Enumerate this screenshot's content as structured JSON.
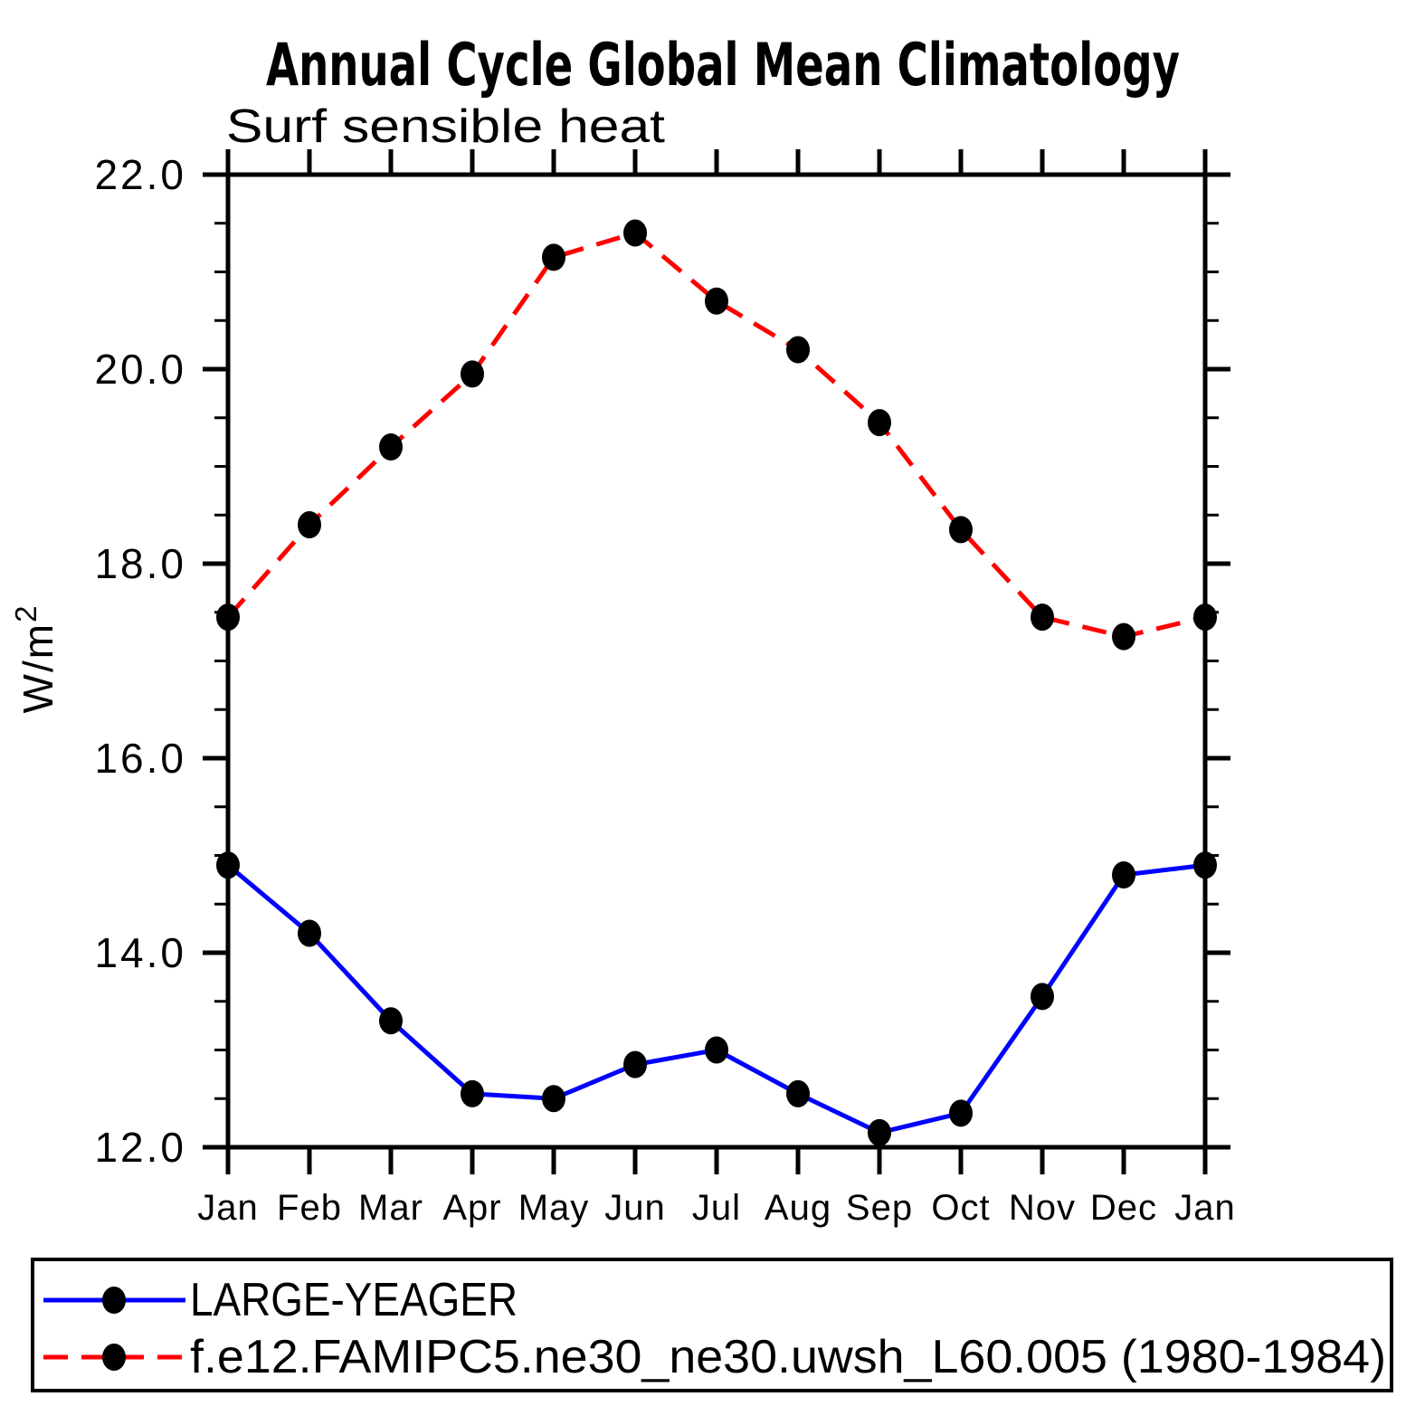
{
  "title": "Annual Cycle Global Mean Climatology",
  "subtitle": "Surf sensible heat",
  "y_axis": {
    "label_base": "W/m",
    "label_exponent": "2"
  },
  "chart_data": {
    "type": "line",
    "title": "Annual Cycle Global Mean Climatology",
    "subtitle": "Surf sensible heat",
    "ylabel": "W/m^2",
    "xlabel": "",
    "categories": [
      "Jan",
      "Feb",
      "Mar",
      "Apr",
      "May",
      "Jun",
      "Jul",
      "Aug",
      "Sep",
      "Oct",
      "Nov",
      "Dec",
      "Jan"
    ],
    "ylim": [
      12.0,
      22.0
    ],
    "ytick_step": 2.0,
    "yminor_step": 0.5,
    "ytick_label_format": "one_decimal",
    "grid": false,
    "legend_position": "bottom",
    "series": [
      {
        "name": "LARGE-YEAGER",
        "line_color": "#0000ff",
        "line_style": "solid",
        "marker": "filled-circle",
        "marker_color": "#000000",
        "values": [
          14.9,
          14.2,
          13.3,
          12.55,
          12.5,
          12.85,
          13.0,
          12.55,
          12.15,
          12.35,
          13.55,
          14.8,
          14.9
        ]
      },
      {
        "name": "f.e12.FAMIPC5.ne30_ne30.uwsh_L60.005 (1980-1984)",
        "line_color": "#ff0000",
        "line_style": "dashed",
        "marker": "filled-circle",
        "marker_color": "#000000",
        "values": [
          17.45,
          18.4,
          19.2,
          19.95,
          21.15,
          21.4,
          20.7,
          20.2,
          19.45,
          18.35,
          17.45,
          17.25,
          17.45
        ]
      }
    ]
  }
}
